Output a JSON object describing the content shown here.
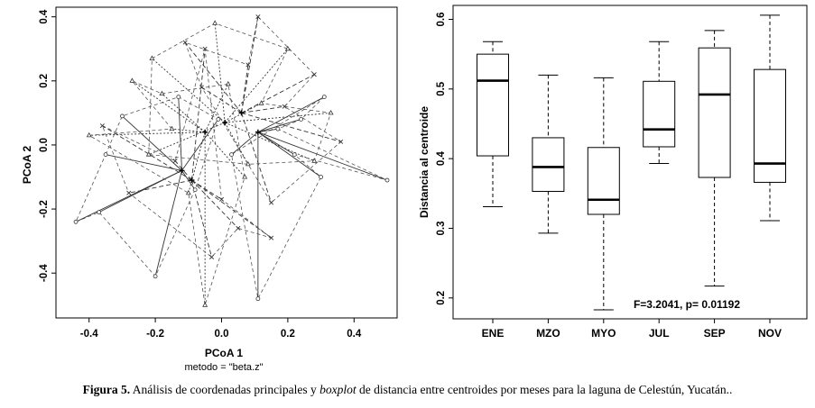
{
  "chart_data": [
    {
      "type": "scatter",
      "xlabel": "PCoA 1",
      "ylabel": "PCoA 2",
      "subtitle": "metodo = \"beta.z\"",
      "xlim": [
        -0.5,
        0.53
      ],
      "ylim": [
        -0.54,
        0.43
      ],
      "x_ticks": [
        -0.4,
        -0.2,
        0.0,
        0.2,
        0.4
      ],
      "y_ticks": [
        -0.4,
        -0.2,
        0.0,
        0.2,
        0.4
      ],
      "x_tick_labels": [
        "-0.4",
        "-0.2",
        "0.0",
        "0.2",
        "0.4"
      ],
      "y_tick_labels": [
        "-0.4",
        "-0.2",
        "0.0",
        "0.2",
        "0.4"
      ],
      "centroids": [
        {
          "x": -0.12,
          "y": -0.08
        },
        {
          "x": 0.06,
          "y": 0.1
        },
        {
          "x": -0.05,
          "y": 0.04
        },
        {
          "x": 0.11,
          "y": 0.04
        },
        {
          "x": -0.09,
          "y": -0.11
        },
        {
          "x": 0.01,
          "y": 0.07
        }
      ],
      "groups": [
        {
          "centroid": 0,
          "line": "solid",
          "points": [
            {
              "x": -0.44,
              "y": -0.24
            },
            {
              "x": -0.37,
              "y": -0.21
            },
            {
              "x": -0.2,
              "y": -0.41
            },
            {
              "x": -0.3,
              "y": 0.09
            },
            {
              "x": -0.13,
              "y": 0.15
            },
            {
              "x": -0.01,
              "y": 0.08
            },
            {
              "x": -0.08,
              "y": -0.14
            },
            {
              "x": -0.35,
              "y": -0.03
            }
          ]
        },
        {
          "centroid": 1,
          "line": "dashed",
          "points": [
            {
              "x": -0.11,
              "y": 0.32
            },
            {
              "x": 0.11,
              "y": 0.4
            },
            {
              "x": 0.28,
              "y": 0.22
            },
            {
              "x": 0.36,
              "y": 0.01
            },
            {
              "x": 0.19,
              "y": 0.12
            },
            {
              "x": -0.06,
              "y": 0.18
            },
            {
              "x": 0.15,
              "y": -0.18
            },
            {
              "x": 0.08,
              "y": 0.25
            }
          ]
        },
        {
          "centroid": 2,
          "line": "dotted",
          "points": [
            {
              "x": -0.05,
              "y": -0.5
            },
            {
              "x": -0.4,
              "y": 0.03
            },
            {
              "x": -0.27,
              "y": 0.2
            },
            {
              "x": -0.18,
              "y": 0.16
            },
            {
              "x": 0.02,
              "y": 0.19
            },
            {
              "x": -0.1,
              "y": -0.15
            },
            {
              "x": 0.07,
              "y": -0.1
            },
            {
              "x": -0.15,
              "y": 0.05
            }
          ]
        },
        {
          "centroid": 3,
          "line": "solid",
          "points": [
            {
              "x": 0.5,
              "y": -0.11
            },
            {
              "x": 0.31,
              "y": 0.15
            },
            {
              "x": 0.22,
              "y": -0.03
            },
            {
              "x": 0.11,
              "y": -0.48
            },
            {
              "x": 0.17,
              "y": 0.05
            },
            {
              "x": 0.03,
              "y": -0.03
            },
            {
              "x": 0.3,
              "y": -0.1
            },
            {
              "x": 0.24,
              "y": 0.08
            }
          ]
        },
        {
          "centroid": 4,
          "line": "dashed",
          "points": [
            {
              "x": -0.28,
              "y": -0.15
            },
            {
              "x": -0.14,
              "y": -0.05
            },
            {
              "x": 0.0,
              "y": -0.17
            },
            {
              "x": -0.05,
              "y": 0.3
            },
            {
              "x": 0.15,
              "y": -0.29
            },
            {
              "x": -0.36,
              "y": 0.06
            },
            {
              "x": 0.05,
              "y": -0.26
            },
            {
              "x": -0.03,
              "y": -0.35
            }
          ]
        },
        {
          "centroid": 5,
          "line": "dotted",
          "points": [
            {
              "x": -0.02,
              "y": 0.38
            },
            {
              "x": 0.2,
              "y": 0.3
            },
            {
              "x": 0.33,
              "y": 0.1
            },
            {
              "x": 0.28,
              "y": -0.05
            },
            {
              "x": -0.21,
              "y": 0.27
            },
            {
              "x": 0.12,
              "y": 0.13
            },
            {
              "x": -0.22,
              "y": -0.03
            },
            {
              "x": 0.08,
              "y": -0.06
            }
          ]
        }
      ]
    },
    {
      "type": "boxplot",
      "ylabel": "Distancia al centroide",
      "ylim": [
        0.17,
        0.62
      ],
      "y_ticks": [
        0.2,
        0.3,
        0.4,
        0.5,
        0.6
      ],
      "y_tick_labels": [
        "0.2",
        "0.3",
        "0.4",
        "0.5",
        "0.6"
      ],
      "categories": [
        "ENE",
        "MZO",
        "MYO",
        "JUL",
        "SEP",
        "NOV"
      ],
      "boxes": [
        {
          "min": 0.331,
          "q1": 0.404,
          "median": 0.512,
          "q3": 0.55,
          "max": 0.568
        },
        {
          "min": 0.293,
          "q1": 0.353,
          "median": 0.388,
          "q3": 0.43,
          "max": 0.52
        },
        {
          "min": 0.183,
          "q1": 0.32,
          "median": 0.341,
          "q3": 0.416,
          "max": 0.516
        },
        {
          "min": 0.393,
          "q1": 0.417,
          "median": 0.442,
          "q3": 0.511,
          "max": 0.568
        },
        {
          "min": 0.217,
          "q1": 0.373,
          "median": 0.492,
          "q3": 0.559,
          "max": 0.584
        },
        {
          "min": 0.311,
          "q1": 0.366,
          "median": 0.393,
          "q3": 0.528,
          "max": 0.606
        }
      ],
      "annotation": "F=3.2041, p= 0.01192"
    }
  ],
  "caption": {
    "label": "Figura 5.",
    "text_1": " Análisis de coordenadas principales y ",
    "italic": "boxplot",
    "text_2": " de distancia entre centroides por meses para la laguna de Celestún, Yucatán.."
  }
}
